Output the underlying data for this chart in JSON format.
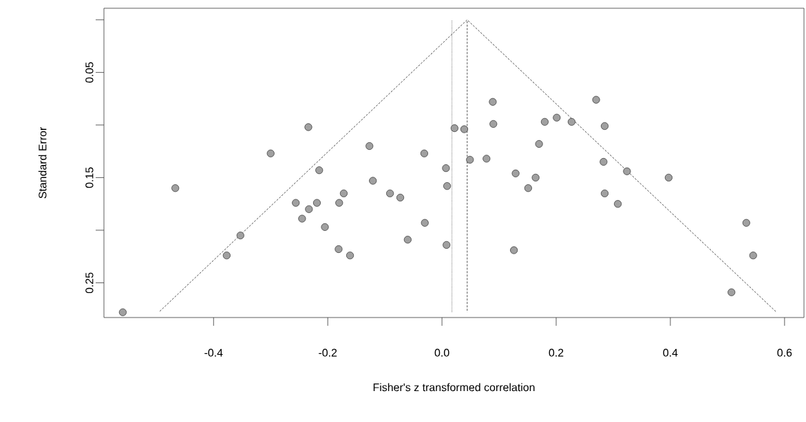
{
  "chart_data": {
    "type": "scatter",
    "xlabel": "Fisher's z transformed correlation",
    "ylabel": "Standard Error",
    "xlim": [
      -0.592,
      0.634
    ],
    "ylim": [
      0.283,
      -0.011
    ],
    "xticks": [
      -0.4,
      -0.2,
      {
        "value": 0,
        "label": "0.0"
      },
      0.2,
      0.4,
      0.6
    ],
    "yticks": [
      {
        "value": 0,
        "label": null
      },
      0.05,
      {
        "value": 0.1,
        "label": null
      },
      0.15,
      {
        "value": 0.2,
        "label": null
      },
      0.25
    ],
    "grid": false,
    "series": [
      {
        "type": "line",
        "color": "#000000",
        "line_style": "dashed",
        "marker": "none",
        "x": [
          -0.496,
          0.0442,
          0.586
        ],
        "values": [
          0.278,
          0,
          0.278
        ]
      },
      {
        "type": "line",
        "color": "#000000",
        "line_style": "dashed",
        "marker": "none",
        "x": [
          0.0442,
          0.0442
        ],
        "values": [
          0,
          0.278
        ]
      },
      {
        "type": "line",
        "color": "#000000",
        "line_style": "dotted",
        "marker": "none",
        "x": [
          0.0175,
          0.0175
        ],
        "values": [
          0,
          0.278
        ]
      },
      {
        "color": "#a0a0a0",
        "marker": "circle",
        "x": [
          -0.559,
          -0.467,
          -0.377,
          -0.353,
          -0.3,
          -0.234,
          -0.215,
          -0.256,
          -0.233,
          -0.219,
          -0.245,
          -0.205,
          -0.181,
          -0.161,
          -0.172,
          -0.18,
          -0.127,
          -0.121,
          -0.091,
          -0.073,
          -0.06,
          -0.031,
          -0.03,
          0.007,
          0.009,
          0.008,
          0.022,
          0.039,
          0.049,
          0.078,
          0.089,
          0.09,
          0.129,
          0.151,
          0.164,
          0.17,
          0.126,
          0.18,
          0.201,
          0.227,
          0.27,
          0.285,
          0.283,
          0.324,
          0.285,
          0.308,
          0.397,
          0.533,
          0.545,
          0.507
        ],
        "values": [
          0.278,
          0.16,
          0.224,
          0.205,
          0.127,
          0.102,
          0.143,
          0.174,
          0.18,
          0.174,
          0.189,
          0.197,
          0.218,
          0.224,
          0.165,
          0.174,
          0.12,
          0.153,
          0.165,
          0.169,
          0.209,
          0.127,
          0.193,
          0.141,
          0.158,
          0.214,
          0.103,
          0.104,
          0.133,
          0.132,
          0.078,
          0.099,
          0.146,
          0.16,
          0.15,
          0.118,
          0.219,
          0.097,
          0.093,
          0.097,
          0.076,
          0.101,
          0.135,
          0.144,
          0.165,
          0.175,
          0.15,
          0.193,
          0.224,
          0.259
        ]
      }
    ]
  }
}
